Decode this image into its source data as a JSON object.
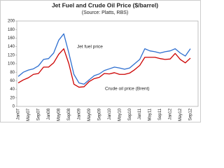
{
  "chart_data": {
    "type": "line",
    "title": "Jet Fuel and Crude Oil Price ($/barrel)",
    "subtitle": "(Source: Platts, RBS)",
    "categories": [
      "Jan07",
      null,
      "May07",
      null,
      "Sep07",
      null,
      "Jan08",
      null,
      "May08",
      null,
      "Sep08",
      null,
      "Jan09",
      null,
      "May09",
      null,
      "Sep09",
      null,
      "Jan10",
      null,
      "May10",
      null,
      "Sep10",
      null,
      "Jan11",
      null,
      "May11",
      null,
      "Sep11",
      null,
      "Jan12",
      null,
      "May12",
      null,
      "Sep12"
    ],
    "series": [
      {
        "name": "Jet fuel price",
        "color": "#2e6fd0",
        "values": [
          70,
          80,
          85,
          88,
          95,
          110,
          112,
          125,
          155,
          170,
          125,
          75,
          55,
          52,
          62,
          72,
          76,
          84,
          88,
          92,
          90,
          87,
          90,
          100,
          110,
          135,
          130,
          128,
          125,
          128,
          130,
          135,
          125,
          118,
          135
        ]
      },
      {
        "name": "Crude oil price (Brent)",
        "color": "#cc0000",
        "values": [
          55,
          62,
          67,
          75,
          77,
          92,
          92,
          102,
          122,
          135,
          100,
          52,
          45,
          46,
          58,
          65,
          68,
          77,
          76,
          79,
          75,
          75,
          78,
          86,
          96,
          115,
          115,
          115,
          112,
          110,
          111,
          124,
          110,
          102,
          113
        ]
      }
    ],
    "ylim": [
      0,
      200
    ],
    "yticks": [
      0,
      20,
      40,
      60,
      80,
      100,
      120,
      140,
      160,
      180,
      200
    ],
    "grid": false
  }
}
